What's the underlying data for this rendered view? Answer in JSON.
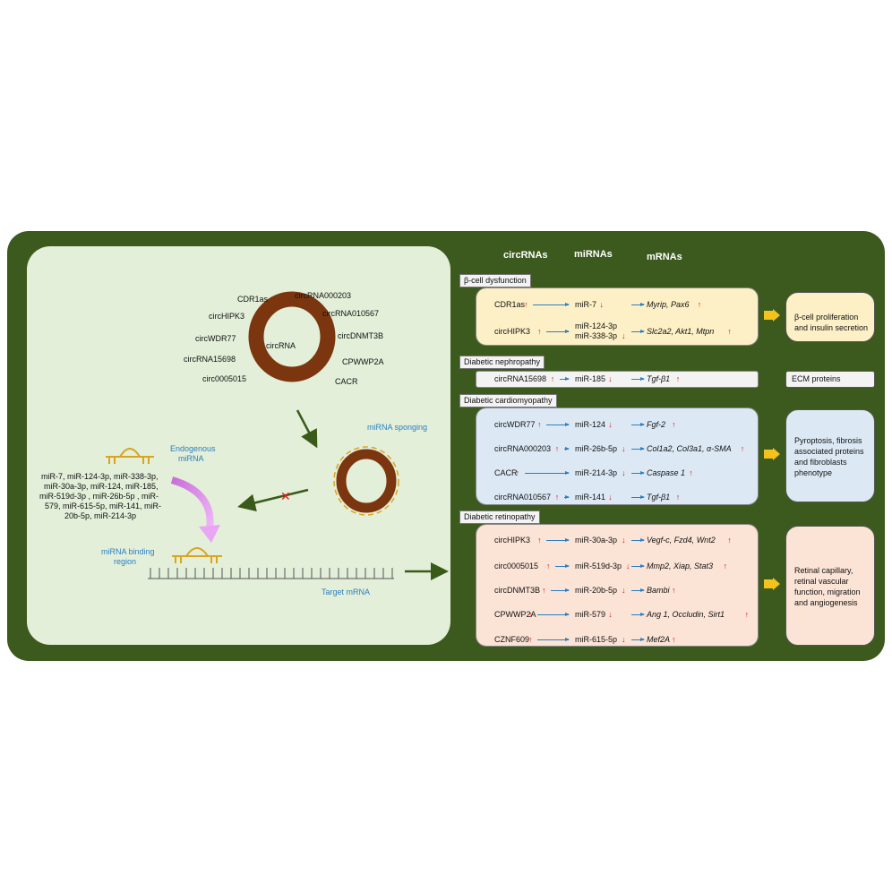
{
  "left": {
    "circ_labels": [
      "CDR1as",
      "circRNA000203",
      "circHIPK3",
      "circRNA010567",
      "circWDR77",
      "circDNMT3B",
      "circRNA15698",
      "CPWWP2A",
      "circ0005015",
      "CACR"
    ],
    "circ_center": "circRNA",
    "sponging": "miRNA sponging",
    "endogenous": [
      "Endogenous",
      "miRNA"
    ],
    "mirna_list": [
      "miR-7, miR-124-3p, miR-338-3p,",
      "miR-30a-3p, miR-124, miR-185,",
      "miR-519d-3p , miR-26b-5p ,  miR-",
      "579, miR-615-5p, miR-141, miR-",
      "20b-5p, miR-214-3p"
    ],
    "binding": [
      "miRNA binding",
      "region"
    ],
    "target": "Target mRNA"
  },
  "headers": {
    "circ": "circRNAs",
    "mi": "miRNAs",
    "m": "mRNAs"
  },
  "sections": {
    "beta": {
      "label": "β-cell dysfunction",
      "rows": [
        {
          "circ": "CDR1as",
          "circ_dir": "↑",
          "mi": "miR-7",
          "mi_dir": "↓",
          "m": "Myrip, Pax6",
          "m_dir": "↑"
        },
        {
          "circ": "circHIPK3",
          "circ_dir": "↑",
          "mi": "miR-124-3p",
          "mi2": "miR-338-3p",
          "mi_dir": "↓",
          "m": "Slc2a2, Akt1, Mtpn",
          "m_dir": "↑"
        }
      ],
      "outcome": [
        "β-cell proliferation",
        "and insulin secretion"
      ]
    },
    "neph": {
      "label": "Diabetic nephropathy",
      "rows": [
        {
          "circ": "circRNA15698",
          "circ_dir": "↑",
          "mi": "miR-185",
          "mi_dir": "↓",
          "m": "Tgf-β1",
          "m_dir": "↑"
        }
      ],
      "outcome": [
        "ECM proteins"
      ]
    },
    "cardio": {
      "label": "Diabetic cardiomyopathy",
      "rows": [
        {
          "circ": "circWDR77",
          "circ_dir": "↑",
          "mi": "miR-124",
          "mi_dir": "↓",
          "m": "Fgf-2",
          "m_dir": "↑"
        },
        {
          "circ": "circRNA000203",
          "circ_dir": "↑",
          "mi": "miR-26b-5p",
          "mi_dir": "↓",
          "m": "Col1a2, Col3a1, α-SMA",
          "m_dir": "↑"
        },
        {
          "circ": "CACR",
          "circ_dir": "↑",
          "mi": "miR-214-3p",
          "mi_dir": "↓",
          "m": "Caspase 1",
          "m_dir": "↑"
        },
        {
          "circ": "circRNA010567",
          "circ_dir": "↑",
          "mi": "miR-141",
          "mi_dir": "↓",
          "m": "Tgf-β1",
          "m_dir": "↑"
        }
      ],
      "outcome": [
        "Pyroptosis, fibrosis",
        "associated proteins",
        "and fibroblasts",
        "phenotype"
      ]
    },
    "retino": {
      "label": "Diabetic retinopathy",
      "rows": [
        {
          "circ": "circHIPK3",
          "circ_dir": "↑",
          "mi": "miR-30a-3p",
          "mi_dir": "↓",
          "m": "Vegf-c, Fzd4, Wnt2",
          "m_dir": "↑"
        },
        {
          "circ": "circ0005015",
          "circ_dir": "↑",
          "mi": "miR-519d-3p",
          "mi_dir": "↓",
          "m": "Mmp2, Xiap, Stat3",
          "m_dir": "↑"
        },
        {
          "circ": "circDNMT3B",
          "circ_dir": "↑",
          "mi": "miR-20b-5p",
          "mi_dir": "↓",
          "m": "Bambi",
          "m_dir": "↑"
        },
        {
          "circ": "CPWWP2A",
          "circ_dir": "↑",
          "mi": "miR-579",
          "mi_dir": "↓",
          "m": "Ang 1, Occludin, Sirt1",
          "m_dir": "↑"
        },
        {
          "circ": "CZNF609",
          "circ_dir": "↑",
          "mi": "miR-615-5p",
          "mi_dir": "↓",
          "m": "Mef2A",
          "m_dir": "↑"
        }
      ],
      "outcome": [
        "Retinal capillary,",
        "retinal vascular",
        "function, migration",
        "and angiogenesis"
      ]
    }
  },
  "colors": {
    "frame": "#3c5a1e",
    "left_panel": "#e3efd9",
    "beta": "#fdf0c6",
    "neph": "#f3f3f3",
    "cardio": "#dce9f5",
    "retino": "#fbe3d5",
    "circle": "#7b3610",
    "gold": "#d9a520",
    "arrow_blue": "#2a7fc2",
    "chevron": "#f3c21c",
    "arrow_green": "#3a5a1a",
    "pink": "#d684e4"
  }
}
